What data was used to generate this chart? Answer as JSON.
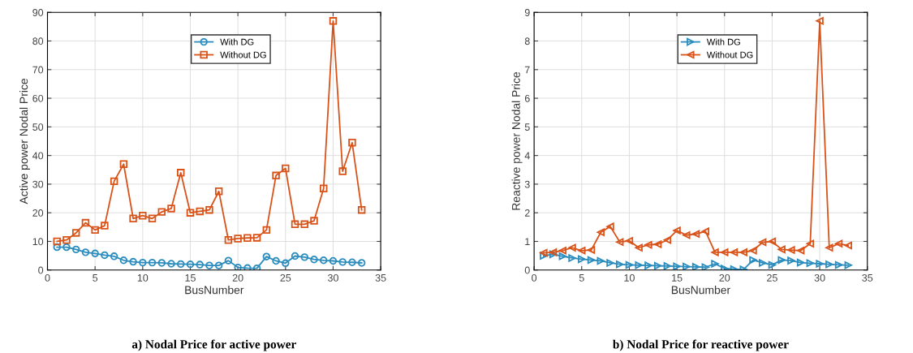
{
  "chart_data": [
    {
      "type": "line",
      "xlabel": "BusNumber",
      "ylabel": "Active power Nodal Price",
      "annotations": [
        "a) Nodal Price for active power"
      ],
      "x": [
        1,
        2,
        3,
        4,
        5,
        6,
        7,
        8,
        9,
        10,
        11,
        12,
        13,
        14,
        15,
        16,
        17,
        18,
        19,
        20,
        21,
        22,
        23,
        24,
        25,
        26,
        27,
        28,
        29,
        30,
        31,
        32,
        33
      ],
      "xlim": [
        0,
        35
      ],
      "xticks": [
        0,
        5,
        10,
        15,
        20,
        25,
        30,
        35
      ],
      "ylim": [
        0,
        90
      ],
      "yticks": [
        0,
        10,
        20,
        30,
        40,
        50,
        60,
        70,
        80,
        90
      ],
      "grid": true,
      "legend": "top",
      "series": [
        {
          "name": "With DG",
          "color": "#2b8cbe",
          "marker": "circle",
          "values": [
            8,
            8,
            7.2,
            6.2,
            5.8,
            5.2,
            4.8,
            3.4,
            2.9,
            2.6,
            2.6,
            2.5,
            2.2,
            2.1,
            2.0,
            1.9,
            1.6,
            1.6,
            3.3,
            0.9,
            0.7,
            0.6,
            4.7,
            3.2,
            2.4,
            4.9,
            4.5,
            3.7,
            3.4,
            3.2,
            2.8,
            2.7,
            2.5
          ]
        },
        {
          "name": "Without DG",
          "color": "#d95319",
          "marker": "square",
          "values": [
            10,
            10.5,
            13,
            16.5,
            14,
            15.5,
            31,
            37,
            18,
            19,
            18,
            20.3,
            21.5,
            34,
            20,
            20.5,
            21,
            27.5,
            10.5,
            11,
            11.2,
            11.3,
            14,
            33,
            35.5,
            16,
            16,
            17.2,
            28.5,
            87,
            34.5,
            44.5,
            21
          ]
        }
      ]
    },
    {
      "type": "line",
      "xlabel": "BusNumber",
      "ylabel": "Reactive power Nodal Price",
      "annotations": [
        "b) Nodal Price for reactive power"
      ],
      "x": [
        1,
        2,
        3,
        4,
        5,
        6,
        7,
        8,
        9,
        10,
        11,
        12,
        13,
        14,
        15,
        16,
        17,
        18,
        19,
        20,
        21,
        22,
        23,
        24,
        25,
        26,
        27,
        28,
        29,
        30,
        31,
        32,
        33
      ],
      "xlim": [
        0,
        35
      ],
      "xticks": [
        0,
        5,
        10,
        15,
        20,
        25,
        30,
        35
      ],
      "ylim": [
        0,
        9
      ],
      "yticks": [
        0,
        1,
        2,
        3,
        4,
        5,
        6,
        7,
        8,
        9
      ],
      "grid": true,
      "legend": "top",
      "series": [
        {
          "name": "With DG",
          "color": "#2b8cbe",
          "marker": "triangle-right",
          "values": [
            0.5,
            0.55,
            0.48,
            0.42,
            0.38,
            0.35,
            0.32,
            0.25,
            0.2,
            0.18,
            0.17,
            0.16,
            0.15,
            0.14,
            0.13,
            0.12,
            0.11,
            0.1,
            0.22,
            0.05,
            0.03,
            0.02,
            0.35,
            0.25,
            0.18,
            0.35,
            0.33,
            0.26,
            0.24,
            0.22,
            0.2,
            0.18,
            0.17
          ]
        },
        {
          "name": "Without DG",
          "color": "#d95319",
          "marker": "triangle-left",
          "values": [
            0.6,
            0.62,
            0.68,
            0.78,
            0.68,
            0.7,
            1.32,
            1.52,
            0.98,
            1.02,
            0.78,
            0.88,
            0.9,
            1.05,
            1.38,
            1.22,
            1.26,
            1.35,
            0.62,
            0.62,
            0.62,
            0.62,
            0.68,
            0.97,
            1.0,
            0.72,
            0.7,
            0.68,
            0.92,
            8.7,
            0.78,
            0.92,
            0.86
          ]
        }
      ]
    }
  ]
}
